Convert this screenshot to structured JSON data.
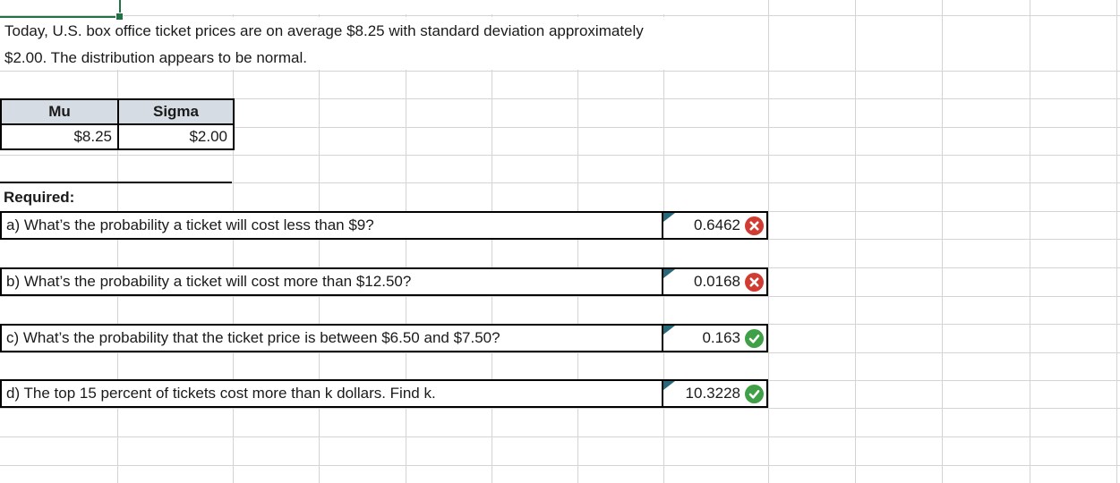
{
  "sheet": {
    "paragraph": {
      "line1": "Today, U.S. box office ticket prices are on average $8.25 with standard deviation approximately",
      "line2": "$2.00. The distribution appears to be normal."
    },
    "params_table": {
      "headers": [
        "Mu",
        "Sigma"
      ],
      "values": [
        "$8.25",
        "$2.00"
      ]
    },
    "required_label": "Required:",
    "questions": [
      {
        "id": "a",
        "text": "a) What’s the probability a ticket will cost less than $9?",
        "answer": "0.6462",
        "status": "incorrect"
      },
      {
        "id": "b",
        "text": "b) What’s the probability a ticket will cost more than $12.50?",
        "answer": "0.0168",
        "status": "incorrect"
      },
      {
        "id": "c",
        "text": "c) What’s the probability that the ticket price is between $6.50 and $7.50?",
        "answer": "0.163",
        "status": "correct"
      },
      {
        "id": "d",
        "text": "d) The top 15 percent of tickets cost more than k dollars. Find k.",
        "answer": "10.3228",
        "status": "correct"
      }
    ],
    "colors": {
      "correct": "#3fa047",
      "incorrect": "#d13c32",
      "flag": "#27687a",
      "selection": "#217346",
      "header_fill": "#d6dce4",
      "gridline": "#d4d4d4"
    }
  }
}
